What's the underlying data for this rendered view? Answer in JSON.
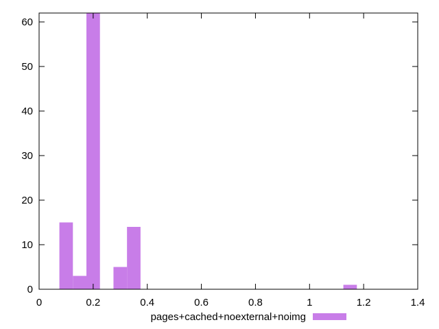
{
  "chart_data": {
    "type": "bar",
    "x": [
      0.1,
      0.15,
      0.2,
      0.25,
      0.3,
      0.35,
      1.15
    ],
    "series": [
      {
        "name": "pages+cached+noexternal+noimg",
        "values": [
          15,
          3,
          62,
          0,
          5,
          14,
          1
        ],
        "color": "#c87de8"
      }
    ],
    "bin_width": 0.05,
    "xlim": [
      0,
      1.4
    ],
    "ylim": [
      0,
      62
    ],
    "xticks": [
      0,
      0.2,
      0.4,
      0.6,
      0.8,
      1,
      1.2,
      1.4
    ],
    "xtick_labels": [
      "0",
      "0.2",
      "0.4",
      "0.6",
      "0.8",
      "1",
      "1.2",
      "1.4"
    ],
    "yticks": [
      0,
      10,
      20,
      30,
      40,
      50,
      60
    ],
    "ytick_labels": [
      "0",
      "10",
      "20",
      "30",
      "40",
      "50",
      "60"
    ],
    "title": "",
    "xlabel": "",
    "ylabel": "",
    "grid": false,
    "legend_position": "bottom-center"
  }
}
